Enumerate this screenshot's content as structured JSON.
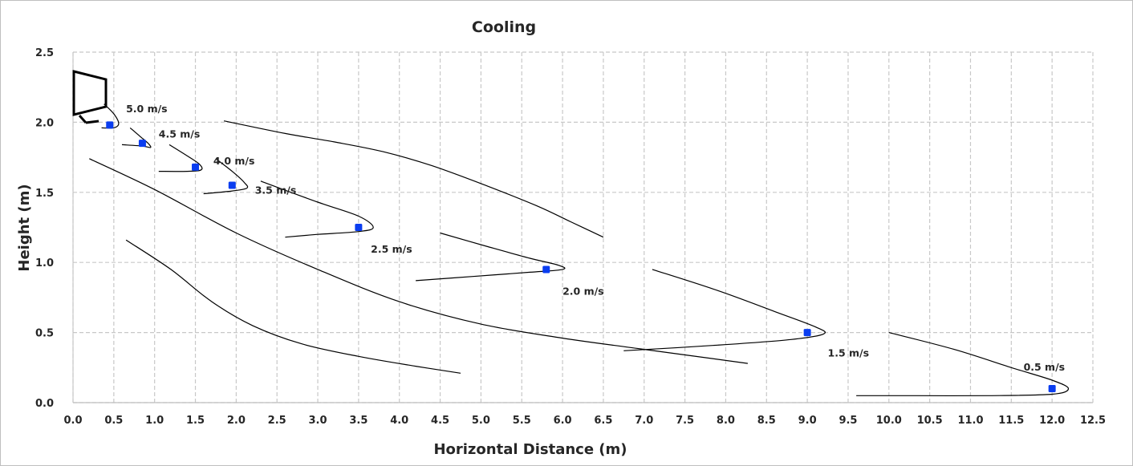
{
  "chart_data": {
    "type": "scatter",
    "title": "Cooling",
    "xlabel": "Horizontal Distance (m)",
    "ylabel": "Height (m)",
    "xlim": [
      0,
      12.5
    ],
    "ylim": [
      0,
      2.5
    ],
    "x_ticks": [
      "0.0",
      "0.5",
      "1.0",
      "1.5",
      "2.0",
      "2.5",
      "3.0",
      "3.5",
      "4.0",
      "4.5",
      "5.0",
      "5.5",
      "6.0",
      "6.5",
      "7.0",
      "7.5",
      "8.0",
      "8.5",
      "9.0",
      "9.5",
      "10.0",
      "10.5",
      "11.0",
      "11.5",
      "12.0",
      "12.5"
    ],
    "y_ticks": [
      "0.0",
      "0.5",
      "1.0",
      "1.5",
      "2.0",
      "2.5"
    ],
    "grid": true,
    "grid_style": "dashed",
    "point_color": "#0a3df0",
    "line_color": "#000000",
    "points": [
      {
        "x": 0.45,
        "y": 1.98
      },
      {
        "x": 0.85,
        "y": 1.85
      },
      {
        "x": 1.5,
        "y": 1.68
      },
      {
        "x": 1.95,
        "y": 1.55
      },
      {
        "x": 3.5,
        "y": 1.25
      },
      {
        "x": 5.8,
        "y": 0.95
      },
      {
        "x": 9.0,
        "y": 0.5
      },
      {
        "x": 12.0,
        "y": 0.1
      }
    ],
    "annotations": [
      {
        "text": "5.0 m/s",
        "x": 0.65,
        "y": 2.07
      },
      {
        "text": "4.5 m/s",
        "x": 1.05,
        "y": 1.89
      },
      {
        "text": "4.0 m/s",
        "x": 1.72,
        "y": 1.7
      },
      {
        "text": "3.5 m/s",
        "x": 2.23,
        "y": 1.49
      },
      {
        "text": "2.5 m/s",
        "x": 3.65,
        "y": 1.07
      },
      {
        "text": "2.0 m/s",
        "x": 6.0,
        "y": 0.77
      },
      {
        "text": "1.5 m/s",
        "x": 9.25,
        "y": 0.33
      },
      {
        "text": "0.5 m/s",
        "x": 11.65,
        "y": 0.23
      }
    ],
    "curves": [
      [
        [
          0.38,
          2.13
        ],
        [
          0.5,
          2.06
        ],
        [
          0.56,
          1.99
        ],
        [
          0.5,
          1.96
        ],
        [
          0.35,
          1.96
        ]
      ],
      [
        [
          0.7,
          1.96
        ],
        [
          0.82,
          1.9
        ],
        [
          0.92,
          1.85
        ],
        [
          0.95,
          1.82
        ],
        [
          0.85,
          1.83
        ],
        [
          0.6,
          1.84
        ]
      ],
      [
        [
          1.18,
          1.84
        ],
        [
          1.4,
          1.76
        ],
        [
          1.55,
          1.7
        ],
        [
          1.57,
          1.66
        ],
        [
          1.4,
          1.65
        ],
        [
          1.05,
          1.65
        ]
      ],
      [
        [
          1.75,
          1.74
        ],
        [
          1.95,
          1.65
        ],
        [
          2.1,
          1.57
        ],
        [
          2.13,
          1.53
        ],
        [
          1.95,
          1.51
        ],
        [
          1.6,
          1.49
        ]
      ],
      [
        [
          1.85,
          2.01
        ],
        [
          2.6,
          1.92
        ],
        [
          3.2,
          1.86
        ],
        [
          3.8,
          1.79
        ],
        [
          4.4,
          1.69
        ],
        [
          5.1,
          1.54
        ],
        [
          5.7,
          1.4
        ],
        [
          6.1,
          1.29
        ],
        [
          6.5,
          1.18
        ]
      ],
      [
        [
          2.3,
          1.58
        ],
        [
          3.0,
          1.43
        ],
        [
          3.5,
          1.33
        ],
        [
          3.68,
          1.25
        ],
        [
          3.5,
          1.22
        ],
        [
          3.0,
          1.2
        ],
        [
          2.6,
          1.18
        ]
      ],
      [
        [
          4.5,
          1.21
        ],
        [
          5.1,
          1.11
        ],
        [
          5.6,
          1.03
        ],
        [
          5.95,
          0.98
        ],
        [
          6.0,
          0.95
        ],
        [
          5.6,
          0.93
        ],
        [
          4.9,
          0.9
        ],
        [
          4.2,
          0.87
        ]
      ],
      [
        [
          7.1,
          0.95
        ],
        [
          7.9,
          0.8
        ],
        [
          8.6,
          0.65
        ],
        [
          9.1,
          0.54
        ],
        [
          9.2,
          0.49
        ],
        [
          8.8,
          0.45
        ],
        [
          7.9,
          0.41
        ],
        [
          6.75,
          0.37
        ]
      ],
      [
        [
          0.2,
          1.74
        ],
        [
          1.0,
          1.52
        ],
        [
          2.0,
          1.21
        ],
        [
          3.0,
          0.95
        ],
        [
          4.0,
          0.72
        ],
        [
          5.0,
          0.56
        ],
        [
          6.0,
          0.46
        ],
        [
          7.0,
          0.38
        ],
        [
          8.27,
          0.28
        ]
      ],
      [
        [
          0.65,
          1.16
        ],
        [
          1.2,
          0.95
        ],
        [
          1.7,
          0.72
        ],
        [
          2.2,
          0.55
        ],
        [
          2.8,
          0.42
        ],
        [
          3.5,
          0.33
        ],
        [
          4.2,
          0.26
        ],
        [
          4.75,
          0.21
        ]
      ],
      [
        [
          10.0,
          0.5
        ],
        [
          10.8,
          0.38
        ],
        [
          11.5,
          0.25
        ],
        [
          12.0,
          0.16
        ],
        [
          12.2,
          0.1
        ],
        [
          12.0,
          0.06
        ],
        [
          11.2,
          0.05
        ],
        [
          10.2,
          0.05
        ],
        [
          9.6,
          0.05
        ]
      ]
    ],
    "unit_icon": "wall-mounted-ac-unit-icon"
  }
}
